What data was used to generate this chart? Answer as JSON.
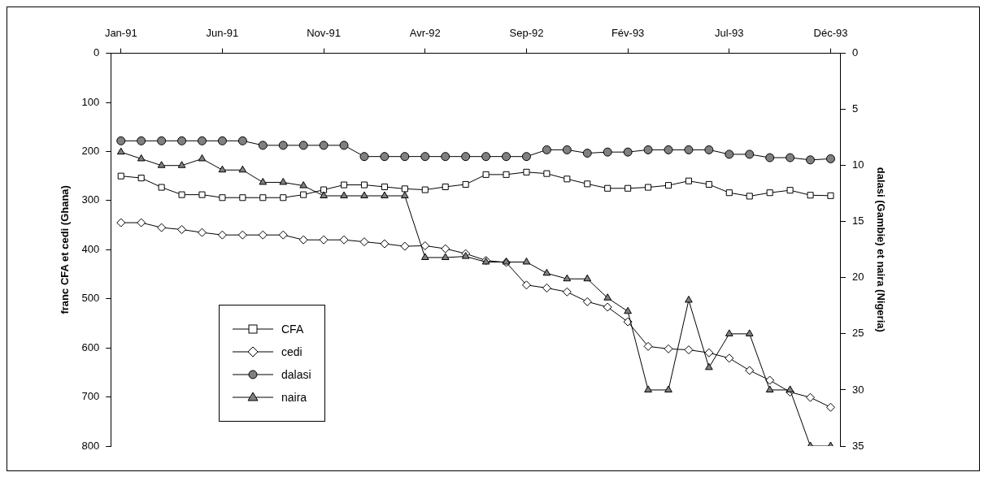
{
  "chart_data": {
    "type": "line",
    "categories": [
      "Jan-91",
      null,
      null,
      null,
      null,
      "Jun-91",
      null,
      null,
      null,
      null,
      "Nov-91",
      null,
      null,
      null,
      null,
      "Avr-92",
      null,
      null,
      null,
      null,
      "Sep-92",
      null,
      null,
      null,
      null,
      "Fév-93",
      null,
      null,
      null,
      null,
      "Jul-93",
      null,
      null,
      null,
      null,
      "Déc-93"
    ],
    "ylabel": "franc CFA et cedi (Ghana)",
    "y2label": "dalasi (Gambie) et naira (Nigeria)",
    "ylim": [
      800,
      0
    ],
    "yticks": [
      0,
      100,
      200,
      300,
      400,
      500,
      600,
      700,
      800
    ],
    "y2lim": [
      35,
      0
    ],
    "y2ticks": [
      0,
      5,
      10,
      15,
      20,
      25,
      30,
      35
    ],
    "grid": false,
    "legend": "bottom left",
    "line_style": "solid",
    "series": [
      {
        "name": "CFA",
        "color": "#ffffff",
        "marker": "square",
        "values": [
          250,
          254,
          273,
          288,
          288,
          294,
          294,
          294,
          294,
          288,
          278,
          268,
          268,
          272,
          276,
          278,
          272,
          267,
          247,
          247,
          242,
          245,
          256,
          266,
          275,
          275,
          273,
          269,
          260,
          267,
          284,
          291,
          284,
          279,
          289,
          290
        ]
      },
      {
        "name": "cedi",
        "color": "#ffffff",
        "marker": "diamond",
        "values": [
          345,
          345,
          355,
          359,
          365,
          370,
          370,
          370,
          370,
          380,
          380,
          380,
          384,
          388,
          393,
          392,
          398,
          408,
          422,
          426,
          472,
          478,
          486,
          506,
          517,
          547,
          597,
          602,
          604,
          610,
          621,
          646,
          666,
          690,
          701,
          721
        ]
      },
      {
        "name": "dalasi",
        "color": "#808080",
        "marker": "circle",
        "axis": "y2",
        "values": [
          7.8,
          7.8,
          7.8,
          7.8,
          7.8,
          7.8,
          7.8,
          8.2,
          8.2,
          8.2,
          8.2,
          8.2,
          9.2,
          9.2,
          9.2,
          9.2,
          9.2,
          9.2,
          9.2,
          9.2,
          9.2,
          8.6,
          8.6,
          8.9,
          8.8,
          8.8,
          8.6,
          8.6,
          8.6,
          8.6,
          9.0,
          9.0,
          9.3,
          9.3,
          9.5,
          9.4
        ]
      },
      {
        "name": "naira",
        "color": "#808080",
        "marker": "triangle",
        "axis": "y2",
        "values": [
          8.8,
          9.4,
          10,
          10,
          9.4,
          10.4,
          10.4,
          11.5,
          11.5,
          11.8,
          12.7,
          12.7,
          12.7,
          12.7,
          12.7,
          18.2,
          18.2,
          18.1,
          18.6,
          18.6,
          18.6,
          19.6,
          20.1,
          20.1,
          21.8,
          23,
          30,
          30,
          22,
          28,
          25,
          25,
          30,
          30,
          35,
          35
        ]
      }
    ]
  }
}
